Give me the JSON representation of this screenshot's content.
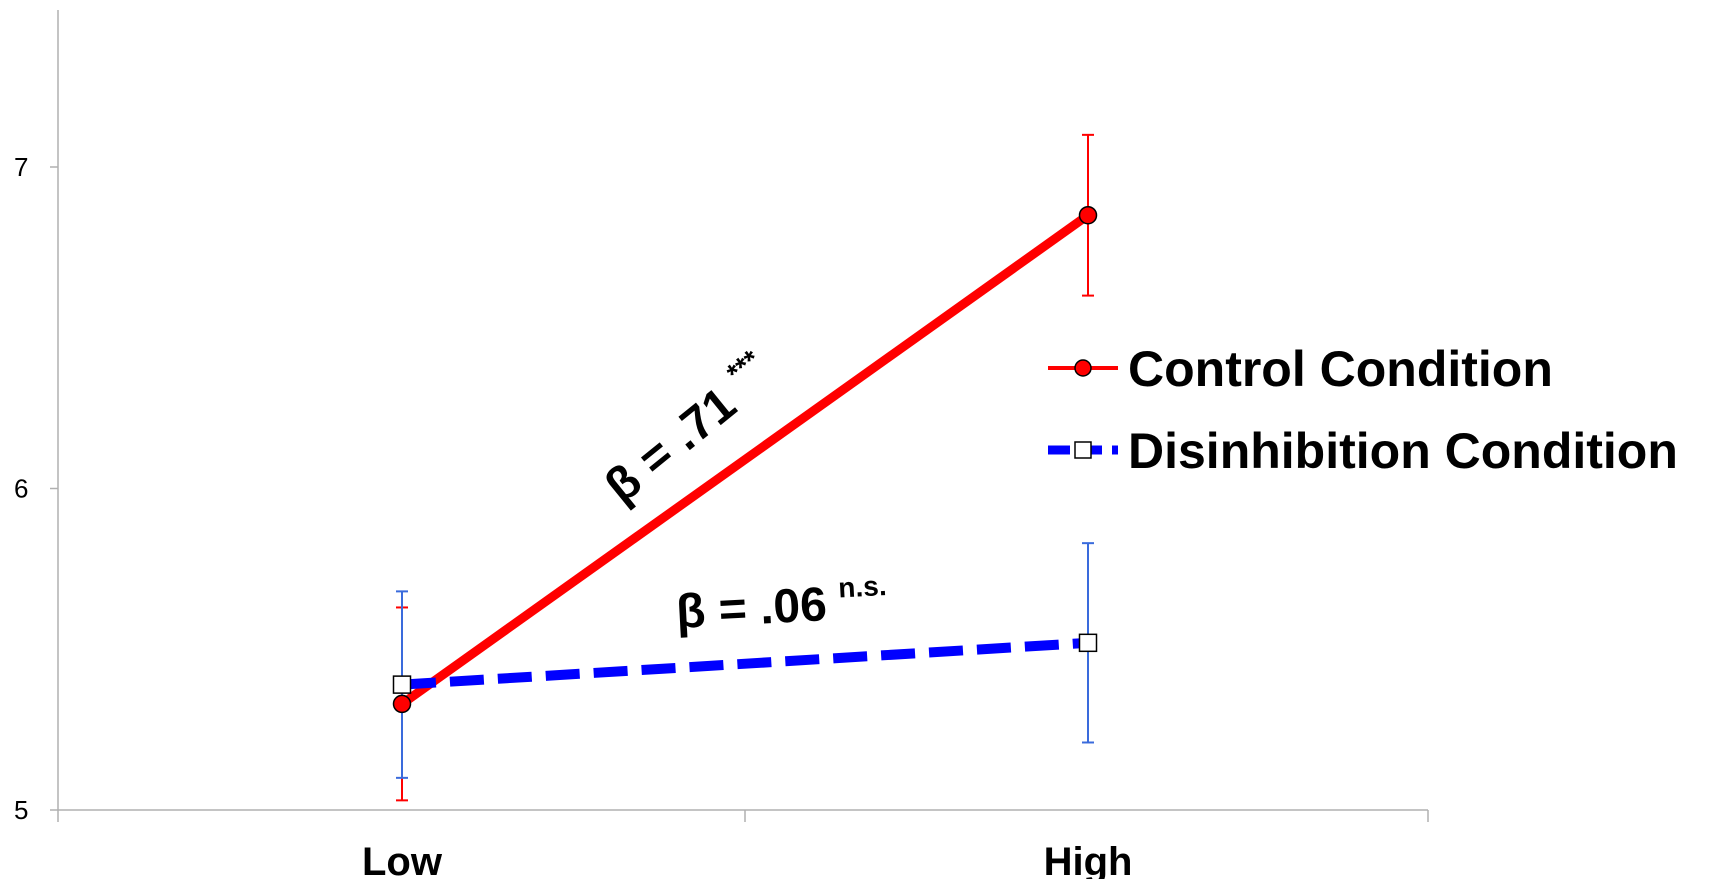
{
  "chart_data": {
    "type": "line",
    "categories": [
      "Low",
      "High"
    ],
    "ylim": [
      5,
      7.5
    ],
    "yticks": [
      "5",
      "6",
      "7"
    ],
    "grid": false,
    "legend_position": "right",
    "series": [
      {
        "name": "Control Condition",
        "values": [
          5.33,
          6.85
        ],
        "error_low": [
          5.03,
          6.6
        ],
        "error_high": [
          5.63,
          7.1
        ],
        "color": "#ff0000",
        "line_style": "solid",
        "marker": "circle",
        "marker_color": "#ff0000"
      },
      {
        "name": "Disinhibition Condition",
        "values": [
          5.39,
          5.52
        ],
        "error_low": [
          5.1,
          5.21
        ],
        "error_high": [
          5.68,
          5.83
        ],
        "color": "#0000ff",
        "errorbar_color": "#3a6bdc",
        "line_style": "dashed",
        "marker": "square",
        "marker_color": "#ffffff"
      }
    ],
    "annotations": [
      {
        "text": "β = .71",
        "sup": "***",
        "series": 0
      },
      {
        "text": "β = .06",
        "sup": "n.s.",
        "series": 1
      }
    ]
  }
}
